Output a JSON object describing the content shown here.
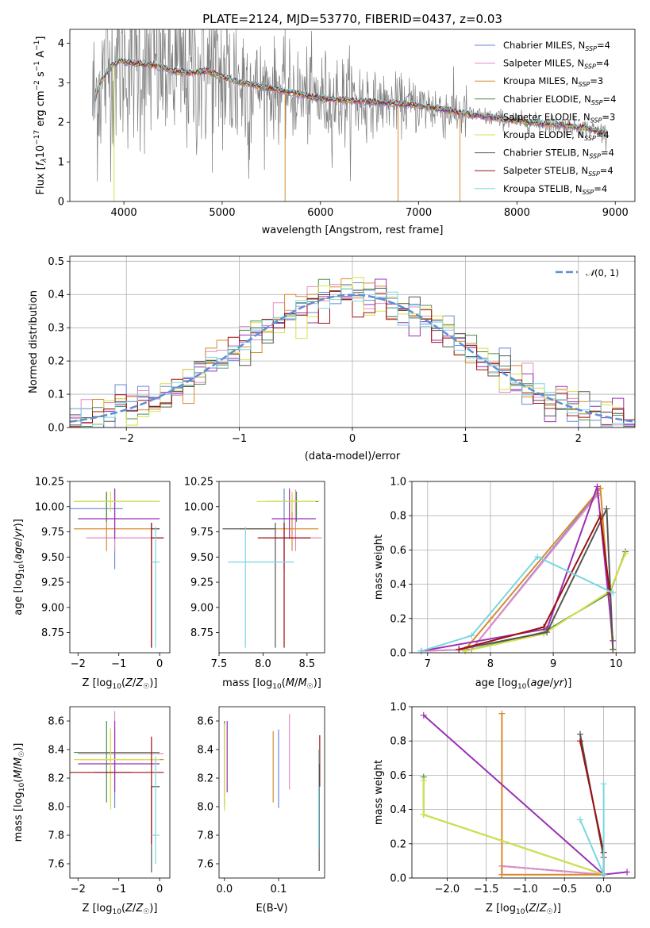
{
  "figure": {
    "title": "PLATE=2124, MJD=53770, FIBERID=0437, z=0.03"
  },
  "model_colors": {
    "Chabrier MILES": "#6d85dc",
    "Salpeter MILES": "#e08cc4",
    "Kroupa MILES": "#d98a2c",
    "Chabrier ELODIE": "#4e8a4e",
    "Salpeter ELODIE": "#9a2fb4",
    "Kroupa ELODIE": "#d4e24a",
    "Chabrier STELIB": "#555555",
    "Salpeter STELIB": "#9e1010",
    "Kroupa STELIB": "#7ad6e0"
  },
  "chart_data": [
    {
      "id": "spectrum",
      "type": "line",
      "xlabel": "wavelength [Angstrom, rest frame]",
      "ylabel": "Flux [f_λ10^-17 erg cm^-2 s^-1 A^-1]",
      "xlim": [
        3450,
        9200
      ],
      "ylim": [
        0,
        4.35
      ],
      "xticks": [
        4000,
        5000,
        6000,
        7000,
        8000,
        9000
      ],
      "yticks": [
        0,
        1,
        2,
        3,
        4
      ],
      "grid": false,
      "legend_position": "top-right",
      "legend": [
        {
          "label": "Chabrier MILES, N",
          "sub": "SSP",
          "tail": "=4",
          "model": "Chabrier MILES"
        },
        {
          "label": "Salpeter MILES, N",
          "sub": "SSP",
          "tail": "=4",
          "model": "Salpeter MILES"
        },
        {
          "label": "Kroupa MILES, N",
          "sub": "SSP",
          "tail": "=3",
          "model": "Kroupa MILES"
        },
        {
          "label": "Chabrier ELODIE, N",
          "sub": "SSP",
          "tail": "=4",
          "model": "Chabrier ELODIE"
        },
        {
          "label": "Salpeter ELODIE, N",
          "sub": "SSP",
          "tail": "=3",
          "model": "Salpeter ELODIE"
        },
        {
          "label": "Kroupa ELODIE, N",
          "sub": "SSP",
          "tail": "=4",
          "model": "Kroupa ELODIE"
        },
        {
          "label": "Chabrier STELIB, N",
          "sub": "SSP",
          "tail": "=4",
          "model": "Chabrier STELIB"
        },
        {
          "label": "Salpeter STELIB, N",
          "sub": "SSP",
          "tail": "=4",
          "model": "Salpeter STELIB"
        },
        {
          "label": "Kroupa STELIB, N",
          "sub": "SSP",
          "tail": "=4",
          "model": "Kroupa STELIB"
        }
      ],
      "model_continuum": {
        "x": [
          3700,
          3750,
          3850,
          3950,
          4100,
          4300,
          4500,
          4700,
          4850,
          5000,
          5200,
          5400,
          5700,
          6000,
          6300,
          6600,
          6900,
          7200,
          7500,
          7800,
          8100,
          8400,
          8700,
          8900
        ],
        "y": [
          2.5,
          2.95,
          3.35,
          3.55,
          3.5,
          3.45,
          3.3,
          3.25,
          3.3,
          3.15,
          3.0,
          2.9,
          2.75,
          2.6,
          2.55,
          2.5,
          2.45,
          2.35,
          2.2,
          2.1,
          2.0,
          1.95,
          1.85,
          1.75
        ]
      },
      "data_noise_series": "Data"
    },
    {
      "id": "residuals",
      "type": "step",
      "xlabel": "(data-model)/error",
      "ylabel": "Normed distribution",
      "xlim": [
        -2.5,
        2.5
      ],
      "ylim": [
        0,
        0.515
      ],
      "xticks": [
        -2,
        -1,
        0,
        1,
        2
      ],
      "yticks": [
        0.0,
        0.1,
        0.2,
        0.3,
        0.4,
        0.5
      ],
      "grid": true,
      "legend_position": "top-right",
      "reference_curve": {
        "label": "N(0,1)",
        "mean": 0,
        "sigma": 1,
        "color": "#5b8fd6"
      }
    },
    {
      "id": "age_vs_Z",
      "type": "errorbar",
      "xlabel": "Z [log10(Z/Z☉)]",
      "ylabel": "age [log10(age/yr)]",
      "xlim": [
        -2.2,
        0.25
      ],
      "ylim": [
        8.55,
        10.25
      ],
      "xticks": [
        -2,
        -1,
        0
      ],
      "yticks": [
        8.75,
        9.0,
        9.25,
        9.5,
        9.75,
        10.0,
        10.25
      ],
      "points": [
        {
          "model": "Chabrier MILES",
          "x": -1.1,
          "y": 9.98,
          "xerr": [
            1.3,
            0.2
          ],
          "yerr": [
            0.6,
            0.2
          ]
        },
        {
          "model": "Salpeter MILES",
          "x": -1.1,
          "y": 9.69,
          "xerr": [
            0.7,
            1.2
          ],
          "yerr": [
            0.13,
            0.48
          ]
        },
        {
          "model": "Kroupa MILES",
          "x": -1.3,
          "y": 9.78,
          "xerr": [
            0.8,
            1.3
          ],
          "yerr": [
            0.22,
            0.35
          ]
        },
        {
          "model": "Chabrier ELODIE",
          "x": -1.3,
          "y": 10.05,
          "xerr": [
            0.8,
            1.3
          ],
          "yerr": [
            0.2,
            0.1
          ]
        },
        {
          "model": "Salpeter ELODIE",
          "x": -1.1,
          "y": 9.88,
          "xerr": [
            0.9,
            1.1
          ],
          "yerr": [
            0.2,
            0.3
          ]
        },
        {
          "model": "Kroupa ELODIE",
          "x": -1.2,
          "y": 10.05,
          "xerr": [
            0.9,
            1.2
          ],
          "yerr": [
            0.1,
            0.1
          ]
        },
        {
          "model": "Chabrier STELIB",
          "x": -0.2,
          "y": 9.78,
          "xerr": [
            0.0,
            0.2
          ],
          "yerr": [
            1.18,
            0.06
          ]
        },
        {
          "model": "Salpeter STELIB",
          "x": -0.2,
          "y": 9.69,
          "xerr": [
            0.0,
            0.3
          ],
          "yerr": [
            1.09,
            0.15
          ]
        },
        {
          "model": "Kroupa STELIB",
          "x": -0.1,
          "y": 9.45,
          "xerr": [
            0.1,
            0.1
          ],
          "yerr": [
            0.85,
            0.35
          ]
        }
      ]
    },
    {
      "id": "age_vs_mass",
      "type": "errorbar",
      "xlabel": "mass [log10(M/M☉)]",
      "ylabel": "",
      "xlim": [
        7.5,
        8.7
      ],
      "ylim": [
        8.55,
        10.25
      ],
      "xticks": [
        7.5,
        8.0,
        8.5
      ],
      "yticks": [
        8.75,
        9.0,
        9.25,
        9.5,
        9.75,
        10.0,
        10.25
      ],
      "points": [
        {
          "model": "Chabrier MILES",
          "x": 8.24,
          "y": 9.98,
          "xerr": [
            0.0,
            0.0
          ],
          "yerr": [
            0.6,
            0.2
          ]
        },
        {
          "model": "Salpeter MILES",
          "x": 8.37,
          "y": 9.69,
          "xerr": [
            0.25,
            0.3
          ],
          "yerr": [
            0.13,
            0.48
          ]
        },
        {
          "model": "Kroupa MILES",
          "x": 8.33,
          "y": 9.78,
          "xerr": [
            0.6,
            0.3
          ],
          "yerr": [
            0.22,
            0.35
          ]
        },
        {
          "model": "Chabrier ELODIE",
          "x": 8.38,
          "y": 10.05,
          "xerr": [
            0.35,
            0.25
          ],
          "yerr": [
            0.2,
            0.1
          ]
        },
        {
          "model": "Salpeter ELODIE",
          "x": 8.3,
          "y": 9.88,
          "xerr": [
            0.2,
            0.3
          ],
          "yerr": [
            0.2,
            0.3
          ]
        },
        {
          "model": "Kroupa ELODIE",
          "x": 8.33,
          "y": 10.05,
          "xerr": [
            0.4,
            0.27
          ],
          "yerr": [
            0.1,
            0.1
          ]
        },
        {
          "model": "Chabrier STELIB",
          "x": 8.14,
          "y": 9.78,
          "xerr": [
            0.6,
            0.0
          ],
          "yerr": [
            1.18,
            0.06
          ]
        },
        {
          "model": "Salpeter STELIB",
          "x": 8.24,
          "y": 9.69,
          "xerr": [
            0.3,
            0.3
          ],
          "yerr": [
            1.09,
            0.15
          ]
        },
        {
          "model": "Kroupa STELIB",
          "x": 7.8,
          "y": 9.45,
          "xerr": [
            0.2,
            0.55
          ],
          "yerr": [
            0.85,
            0.35
          ]
        }
      ]
    },
    {
      "id": "weight_vs_age",
      "type": "line",
      "xlabel": "age [log10(age/yr)]",
      "ylabel": "mass weight",
      "xlim": [
        6.75,
        10.3
      ],
      "ylim": [
        0,
        1.0
      ],
      "xticks": [
        7,
        8,
        9,
        10
      ],
      "yticks": [
        0.0,
        0.2,
        0.4,
        0.6,
        0.8,
        1.0
      ],
      "grid": true,
      "series": [
        {
          "model": "Chabrier MILES",
          "x": [
            6.9,
            7.7,
            9.7
          ],
          "y": [
            0.01,
            0.02,
            0.93
          ]
        },
        {
          "model": "Salpeter MILES",
          "x": [
            6.9,
            7.7,
            9.7
          ],
          "y": [
            0.01,
            0.02,
            0.92
          ]
        },
        {
          "model": "Kroupa MILES",
          "x": [
            7.6,
            9.75,
            9.95
          ],
          "y": [
            0.02,
            0.96,
            0.02
          ]
        },
        {
          "model": "Chabrier ELODIE",
          "x": [
            7.6,
            8.85,
            9.9,
            10.15
          ],
          "y": [
            0.01,
            0.12,
            0.35,
            0.59
          ]
        },
        {
          "model": "Salpeter ELODIE",
          "x": [
            6.9,
            8.9,
            9.7,
            9.95
          ],
          "y": [
            0.01,
            0.14,
            0.97,
            0.07
          ]
        },
        {
          "model": "Kroupa ELODIE",
          "x": [
            7.6,
            8.85,
            9.9,
            10.15
          ],
          "y": [
            0.01,
            0.11,
            0.36,
            0.58
          ]
        },
        {
          "model": "Chabrier STELIB",
          "x": [
            7.5,
            8.9,
            9.85,
            9.95
          ],
          "y": [
            0.02,
            0.12,
            0.84,
            0.02
          ]
        },
        {
          "model": "Salpeter STELIB",
          "x": [
            7.5,
            8.85,
            9.75,
            9.9
          ],
          "y": [
            0.02,
            0.15,
            0.8,
            0.35
          ]
        },
        {
          "model": "Kroupa STELIB",
          "x": [
            6.9,
            7.7,
            8.75,
            9.95
          ],
          "y": [
            0.01,
            0.1,
            0.56,
            0.35
          ]
        }
      ]
    },
    {
      "id": "mass_vs_Z",
      "type": "errorbar",
      "xlabel": "Z [log10(Z/Z☉)]",
      "ylabel": "mass [log10(M/M☉)]",
      "xlim": [
        -2.2,
        0.25
      ],
      "ylim": [
        7.5,
        8.7
      ],
      "xticks": [
        -2,
        -1,
        0
      ],
      "yticks": [
        7.6,
        7.8,
        8.0,
        8.2,
        8.4,
        8.6
      ],
      "points": [
        {
          "model": "Chabrier MILES",
          "x": -1.1,
          "y": 8.24,
          "xerr": [
            0.5,
            0.4
          ],
          "yerr": [
            0.25,
            0.3
          ]
        },
        {
          "model": "Salpeter MILES",
          "x": -1.1,
          "y": 8.37,
          "xerr": [
            0.9,
            1.2
          ],
          "yerr": [
            0.25,
            0.3
          ]
        },
        {
          "model": "Kroupa MILES",
          "x": -1.2,
          "y": 8.33,
          "xerr": [
            0.8,
            1.3
          ],
          "yerr": [
            0.3,
            0.2
          ]
        },
        {
          "model": "Chabrier ELODIE",
          "x": -1.3,
          "y": 8.38,
          "xerr": [
            0.8,
            1.3
          ],
          "yerr": [
            0.35,
            0.22
          ]
        },
        {
          "model": "Salpeter ELODIE",
          "x": -1.1,
          "y": 8.3,
          "xerr": [
            0.9,
            1.1
          ],
          "yerr": [
            0.2,
            0.3
          ]
        },
        {
          "model": "Kroupa ELODIE",
          "x": -1.2,
          "y": 8.33,
          "xerr": [
            0.9,
            1.2
          ],
          "yerr": [
            0.35,
            0.22
          ]
        },
        {
          "model": "Chabrier STELIB",
          "x": -0.2,
          "y": 8.14,
          "xerr": [
            0.0,
            0.2
          ],
          "yerr": [
            0.6,
            0.0
          ]
        },
        {
          "model": "Salpeter STELIB",
          "x": -0.2,
          "y": 8.24,
          "xerr": [
            2.0,
            0.3
          ],
          "yerr": [
            0.5,
            0.25
          ]
        },
        {
          "model": "Kroupa STELIB",
          "x": -0.1,
          "y": 7.8,
          "xerr": [
            0.1,
            0.1
          ],
          "yerr": [
            0.2,
            0.55
          ]
        }
      ]
    },
    {
      "id": "mass_vs_EBV",
      "type": "errorbar",
      "xlabel": "E(B-V)",
      "ylabel": "",
      "xlim": [
        -0.01,
        0.185
      ],
      "ylim": [
        7.5,
        8.7
      ],
      "xticks": [
        0.0,
        0.1
      ],
      "yticks": [
        7.6,
        7.8,
        8.0,
        8.2,
        8.4,
        8.6
      ],
      "points": [
        {
          "model": "Chabrier MILES",
          "x": 0.1,
          "y": 8.24,
          "xerr": [
            0,
            0
          ],
          "yerr": [
            0.25,
            0.3
          ]
        },
        {
          "model": "Salpeter MILES",
          "x": 0.12,
          "y": 8.37,
          "xerr": [
            0,
            0
          ],
          "yerr": [
            0.25,
            0.28
          ]
        },
        {
          "model": "Kroupa MILES",
          "x": 0.09,
          "y": 8.23,
          "xerr": [
            0,
            0
          ],
          "yerr": [
            0.2,
            0.3
          ]
        },
        {
          "model": "Chabrier ELODIE",
          "x": 0.0,
          "y": 8.3,
          "xerr": [
            0,
            0
          ],
          "yerr": [
            0.3,
            0.3
          ]
        },
        {
          "model": "Salpeter ELODIE",
          "x": 0.005,
          "y": 8.3,
          "xerr": [
            0,
            0
          ],
          "yerr": [
            0.2,
            0.3
          ]
        },
        {
          "model": "Kroupa ELODIE",
          "x": 0.0,
          "y": 8.28,
          "xerr": [
            0,
            0
          ],
          "yerr": [
            0.31,
            0.3
          ]
        },
        {
          "model": "Chabrier STELIB",
          "x": 0.175,
          "y": 8.0,
          "xerr": [
            0,
            0
          ],
          "yerr": [
            0.45,
            0.3
          ]
        },
        {
          "model": "Salpeter STELIB",
          "x": 0.176,
          "y": 8.24,
          "xerr": [
            0,
            0
          ],
          "yerr": [
            0.1,
            0.26
          ]
        },
        {
          "model": "Kroupa STELIB",
          "x": 0.174,
          "y": 8.0,
          "xerr": [
            0,
            0
          ],
          "yerr": [
            0.3,
            0.4
          ]
        }
      ]
    },
    {
      "id": "weight_vs_Z",
      "type": "line",
      "xlabel": "Z [log10(Z/Z☉)]",
      "ylabel": "mass weight",
      "xlim": [
        -2.45,
        0.4
      ],
      "ylim": [
        0,
        1.0
      ],
      "xticks": [
        -2.0,
        -1.5,
        -1.0,
        -0.5,
        0.0
      ],
      "yticks": [
        0.0,
        0.2,
        0.4,
        0.6,
        0.8,
        1.0
      ],
      "grid": true,
      "series": [
        {
          "model": "Chabrier MILES",
          "x": [
            -1.3,
            -1.3,
            0.0
          ],
          "y": [
            0.02,
            0.07,
            0.02
          ]
        },
        {
          "model": "Salpeter MILES",
          "x": [
            -1.3,
            -1.3,
            0.0
          ],
          "y": [
            0.02,
            0.07,
            0.02
          ]
        },
        {
          "model": "Kroupa MILES",
          "x": [
            -1.3,
            -1.3,
            0.0
          ],
          "y": [
            0.96,
            0.02,
            0.02
          ]
        },
        {
          "model": "Chabrier ELODIE",
          "x": [
            -2.3,
            -2.3,
            0.0
          ],
          "y": [
            0.59,
            0.37,
            0.02
          ]
        },
        {
          "model": "Salpeter ELODIE",
          "x": [
            -2.3,
            0.0,
            0.3
          ],
          "y": [
            0.95,
            0.02,
            0.035
          ]
        },
        {
          "model": "Kroupa ELODIE",
          "x": [
            -2.3,
            -2.3,
            0.0
          ],
          "y": [
            0.57,
            0.37,
            0.02
          ]
        },
        {
          "model": "Chabrier STELIB",
          "x": [
            -0.3,
            0.0,
            0.0
          ],
          "y": [
            0.84,
            0.12,
            0.02
          ]
        },
        {
          "model": "Salpeter STELIB",
          "x": [
            -0.3,
            0.0,
            0.0
          ],
          "y": [
            0.8,
            0.15,
            0.02
          ]
        },
        {
          "model": "Kroupa STELIB",
          "x": [
            -0.3,
            0.0,
            0.0
          ],
          "y": [
            0.34,
            0.02,
            0.55
          ]
        }
      ]
    }
  ]
}
